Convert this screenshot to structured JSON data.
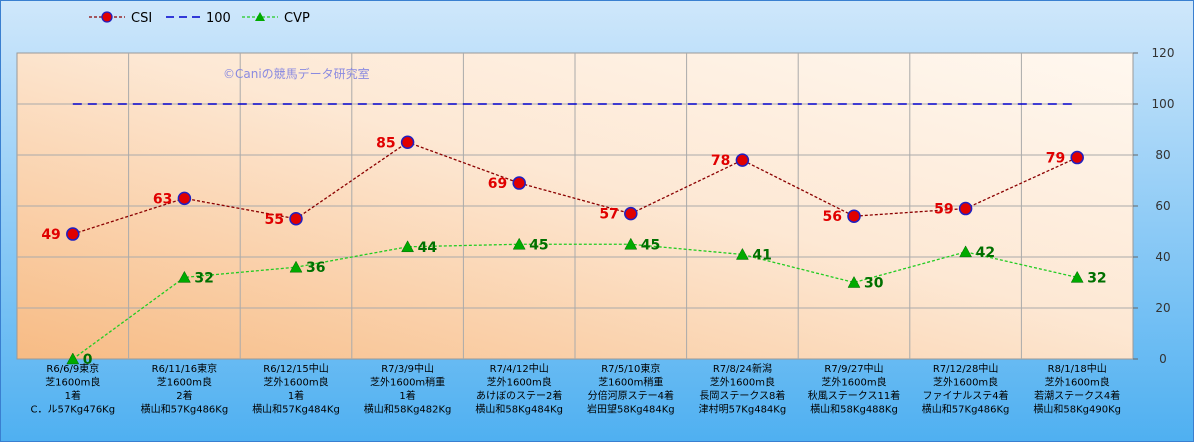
{
  "chart_data": {
    "type": "line",
    "watermark": "©Caniの競馬データ研究室",
    "categories": [
      [
        "R6/6/9東京",
        "芝1600m良",
        "1着",
        "C．ル57Kg476Kg"
      ],
      [
        "R6/11/16東京",
        "芝1600m良",
        "2着",
        "横山和57Kg486Kg"
      ],
      [
        "R6/12/15中山",
        "芝外1600m良",
        "1着",
        "横山和57Kg484Kg"
      ],
      [
        "R7/3/9中山",
        "芝外1600m稍重",
        "1着",
        "横山和58Kg482Kg"
      ],
      [
        "R7/4/12中山",
        "芝外1600m良",
        "あけぼのステー2着",
        "横山和58Kg484Kg"
      ],
      [
        "R7/5/10東京",
        "芝1600m稍重",
        "分倍河原ステー4着",
        "岩田望58Kg484Kg"
      ],
      [
        "R7/8/24新潟",
        "芝外1600m良",
        "長岡ステークス8着",
        "津村明57Kg484Kg"
      ],
      [
        "R7/9/27中山",
        "芝外1600m良",
        "秋風ステークス11着",
        "横山和58Kg488Kg"
      ],
      [
        "R7/12/28中山",
        "芝外1600m良",
        "ファイナルステ4着",
        "横山和57Kg486Kg"
      ],
      [
        "R8/1/18中山",
        "芝外1600m良",
        "若潮ステークス4着",
        "横山和58Kg490Kg"
      ]
    ],
    "series": [
      {
        "name": "CSI",
        "values": [
          49,
          63,
          55,
          85,
          69,
          57,
          78,
          56,
          59,
          79
        ],
        "color": "#8b0000",
        "marker_color": "#e00000"
      },
      {
        "name": "100",
        "values": [
          100,
          100,
          100,
          100,
          100,
          100,
          100,
          100,
          100,
          100
        ],
        "color": "#0000cc"
      },
      {
        "name": "CVP",
        "values": [
          0,
          32,
          36,
          44,
          45,
          45,
          41,
          30,
          42,
          32
        ],
        "color": "#22cc22",
        "marker_color": "#00aa00"
      }
    ],
    "y_ticks": [
      "0",
      "20",
      "40",
      "60",
      "80",
      "100",
      "120"
    ],
    "ylim": [
      0,
      120
    ],
    "grid": true,
    "legend_position": "top-left"
  }
}
